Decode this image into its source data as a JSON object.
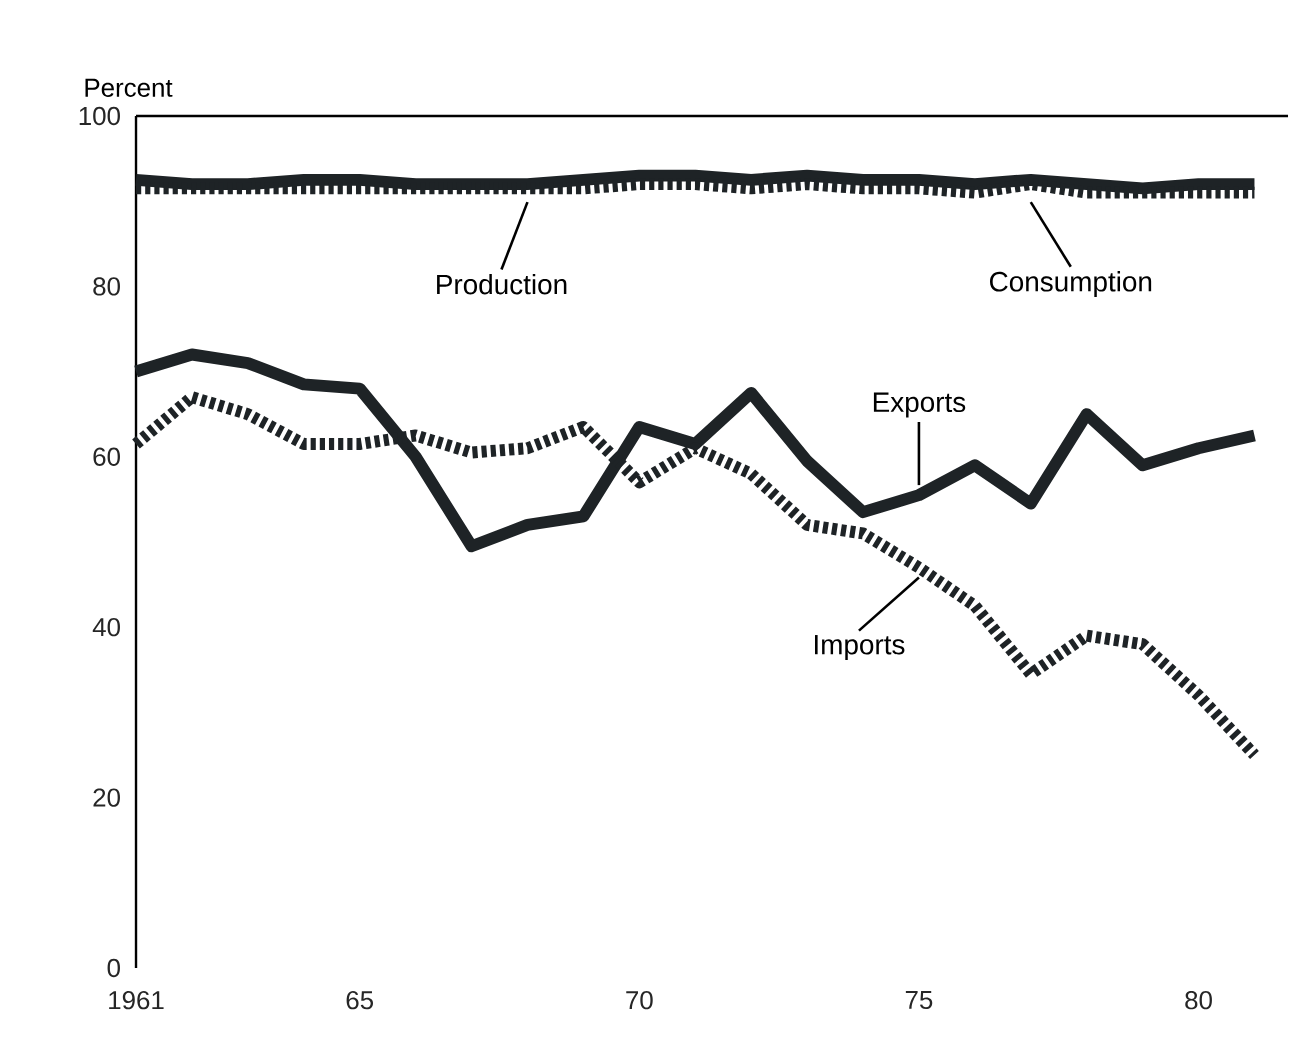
{
  "chart_data": {
    "type": "line",
    "ylabel": "Percent",
    "x": [
      1961,
      1962,
      1963,
      1964,
      1965,
      1966,
      1967,
      1968,
      1969,
      1970,
      1971,
      1972,
      1973,
      1974,
      1975,
      1976,
      1977,
      1978,
      1979,
      1980,
      1981
    ],
    "series": [
      {
        "name": "Production",
        "color": "#1e2326",
        "line_style": "solid",
        "values": [
          92.5,
          92,
          92,
          92.5,
          92.5,
          92,
          92,
          92,
          92.5,
          93,
          93,
          92.5,
          93,
          92.5,
          92.5,
          92,
          92.5,
          92,
          91.5,
          92,
          92
        ]
      },
      {
        "name": "Consumption",
        "color": "#1e2326",
        "line_style": "dashed",
        "values": [
          91.5,
          91.5,
          91.5,
          91.5,
          91.5,
          91.5,
          91.5,
          91.5,
          91.5,
          92,
          92,
          91.5,
          92,
          91.5,
          91.5,
          91,
          92,
          91,
          91,
          91,
          91
        ]
      },
      {
        "name": "Exports",
        "color": "#1e2326",
        "line_style": "solid",
        "values": [
          70,
          72,
          71,
          68.5,
          68,
          60,
          49.5,
          52,
          53,
          63.5,
          61.5,
          67.5,
          59.5,
          53.5,
          55.5,
          59,
          54.5,
          65,
          59,
          61,
          62.5
        ]
      },
      {
        "name": "Imports",
        "color": "#1e2326",
        "line_style": "dashed",
        "values": [
          61.5,
          67,
          65,
          61.5,
          61.5,
          62.5,
          60.5,
          61,
          63.5,
          57,
          61,
          58,
          52,
          51,
          47,
          42.5,
          34.5,
          39,
          38,
          32,
          25
        ]
      }
    ],
    "xlim": [
      1961,
      1981.6
    ],
    "ylim": [
      0,
      100
    ],
    "xticks": [
      1961,
      {
        "value": 1965,
        "label": "65"
      },
      {
        "value": 1970,
        "label": "70"
      },
      {
        "value": 1975,
        "label": "75"
      },
      {
        "value": 1980,
        "label": "80"
      }
    ],
    "yticks": [
      0,
      20,
      40,
      60,
      80,
      100
    ],
    "grid": false,
    "legend": false,
    "marker": "none"
  }
}
